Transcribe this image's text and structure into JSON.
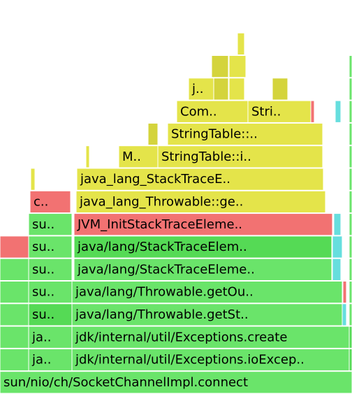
{
  "frames": [
    {
      "label": "sun/nio/ch/SocketChannelImpl.connect"
    },
    {
      "label": "ja.."
    },
    {
      "label": "jdk/internal/util/Exceptions.ioExcep.."
    },
    {
      "label": "ja.."
    },
    {
      "label": "jdk/internal/util/Exceptions.create"
    },
    {
      "label": "su.."
    },
    {
      "label": "java/lang/Throwable.getSt.."
    },
    {
      "label": "su.."
    },
    {
      "label": "java/lang/Throwable.getOu.."
    },
    {
      "label": "su.."
    },
    {
      "label": "java/lang/StackTraceEleme.."
    },
    {
      "label": "su.."
    },
    {
      "label": "java/lang/StackTraceElem.."
    },
    {
      "label": "su.."
    },
    {
      "label": "JVM_InitStackTraceEleme.."
    },
    {
      "label": "c.."
    },
    {
      "label": "java_lang_Throwable::ge.."
    },
    {
      "label": "java_lang_StackTraceE.."
    },
    {
      "label": "M.."
    },
    {
      "label": "StringTable::i.."
    },
    {
      "label": "StringTable::.."
    },
    {
      "label": "Com.."
    },
    {
      "label": "Stri.."
    },
    {
      "label": "j.."
    }
  ]
}
